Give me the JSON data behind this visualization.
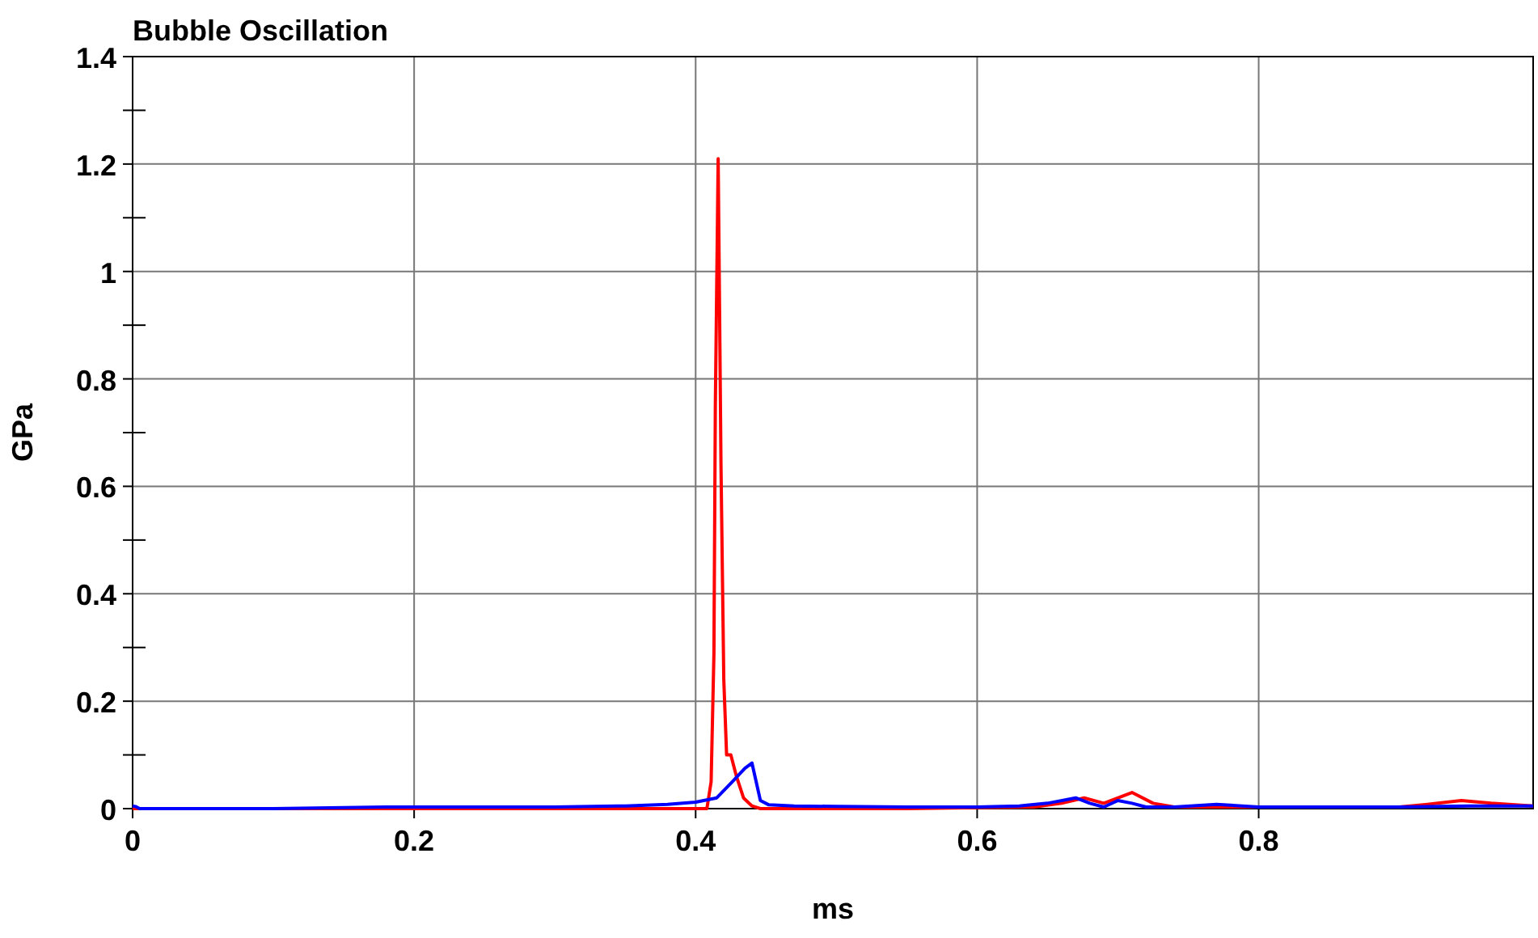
{
  "chart_data": {
    "type": "line",
    "title": "Bubble Oscillation",
    "xlabel": "ms",
    "ylabel": "GPa",
    "xlim": [
      0,
      0.995
    ],
    "ylim": [
      0,
      1.4
    ],
    "xticks": [
      0,
      0.2,
      0.4,
      0.6,
      0.8
    ],
    "yticks": [
      0,
      {
        "value": 0.1,
        "label": null
      },
      0.2,
      {
        "value": 0.3,
        "label": null
      },
      0.4,
      {
        "value": 0.5,
        "label": null
      },
      0.6,
      {
        "value": 0.7,
        "label": null
      },
      0.8,
      {
        "value": 0.9,
        "label": null
      },
      1,
      {
        "value": 1.1,
        "label": null
      },
      1.2,
      {
        "value": 1.3,
        "label": null
      },
      1.4
    ],
    "grid": true,
    "series": [
      {
        "color": "#ff0000",
        "x": [
          0,
          0.1,
          0.2,
          0.3,
          0.38,
          0.405,
          0.408,
          0.411,
          0.413,
          0.414,
          0.416,
          0.417,
          0.418,
          0.42,
          0.422,
          0.425,
          0.429,
          0.434,
          0.44,
          0.446,
          0.5,
          0.55,
          0.6,
          0.64,
          0.66,
          0.676,
          0.69,
          0.71,
          0.725,
          0.74,
          0.8,
          0.9,
          0.92,
          0.944,
          0.965,
          0.995
        ],
        "values": [
          0,
          0,
          0,
          0,
          0,
          0,
          0,
          0.05,
          0.29,
          0.75,
          1.21,
          0.93,
          0.64,
          0.24,
          0.1,
          0.1,
          0.06,
          0.02,
          0.005,
          0,
          0,
          0,
          0.002,
          0.003,
          0.01,
          0.02,
          0.01,
          0.03,
          0.01,
          0.003,
          0.003,
          0.003,
          0.008,
          0.015,
          0.01,
          0.005
        ]
      },
      {
        "color": "#0000ff",
        "x": [
          0,
          0.002,
          0.005,
          0.1,
          0.18,
          0.25,
          0.3,
          0.35,
          0.38,
          0.4,
          0.415,
          0.426,
          0.435,
          0.44,
          0.446,
          0.452,
          0.47,
          0.5,
          0.55,
          0.6,
          0.63,
          0.65,
          0.67,
          0.68,
          0.69,
          0.7,
          0.71,
          0.72,
          0.74,
          0.77,
          0.8,
          0.9,
          0.95,
          0.995
        ],
        "values": [
          0.005,
          0.004,
          0,
          0,
          0.003,
          0.003,
          0.003,
          0.005,
          0.008,
          0.012,
          0.02,
          0.05,
          0.075,
          0.085,
          0.015,
          0.007,
          0.005,
          0.004,
          0.003,
          0.003,
          0.005,
          0.01,
          0.02,
          0.01,
          0.003,
          0.015,
          0.01,
          0.003,
          0.003,
          0.008,
          0.003,
          0.003,
          0.005,
          0.005
        ]
      }
    ]
  }
}
